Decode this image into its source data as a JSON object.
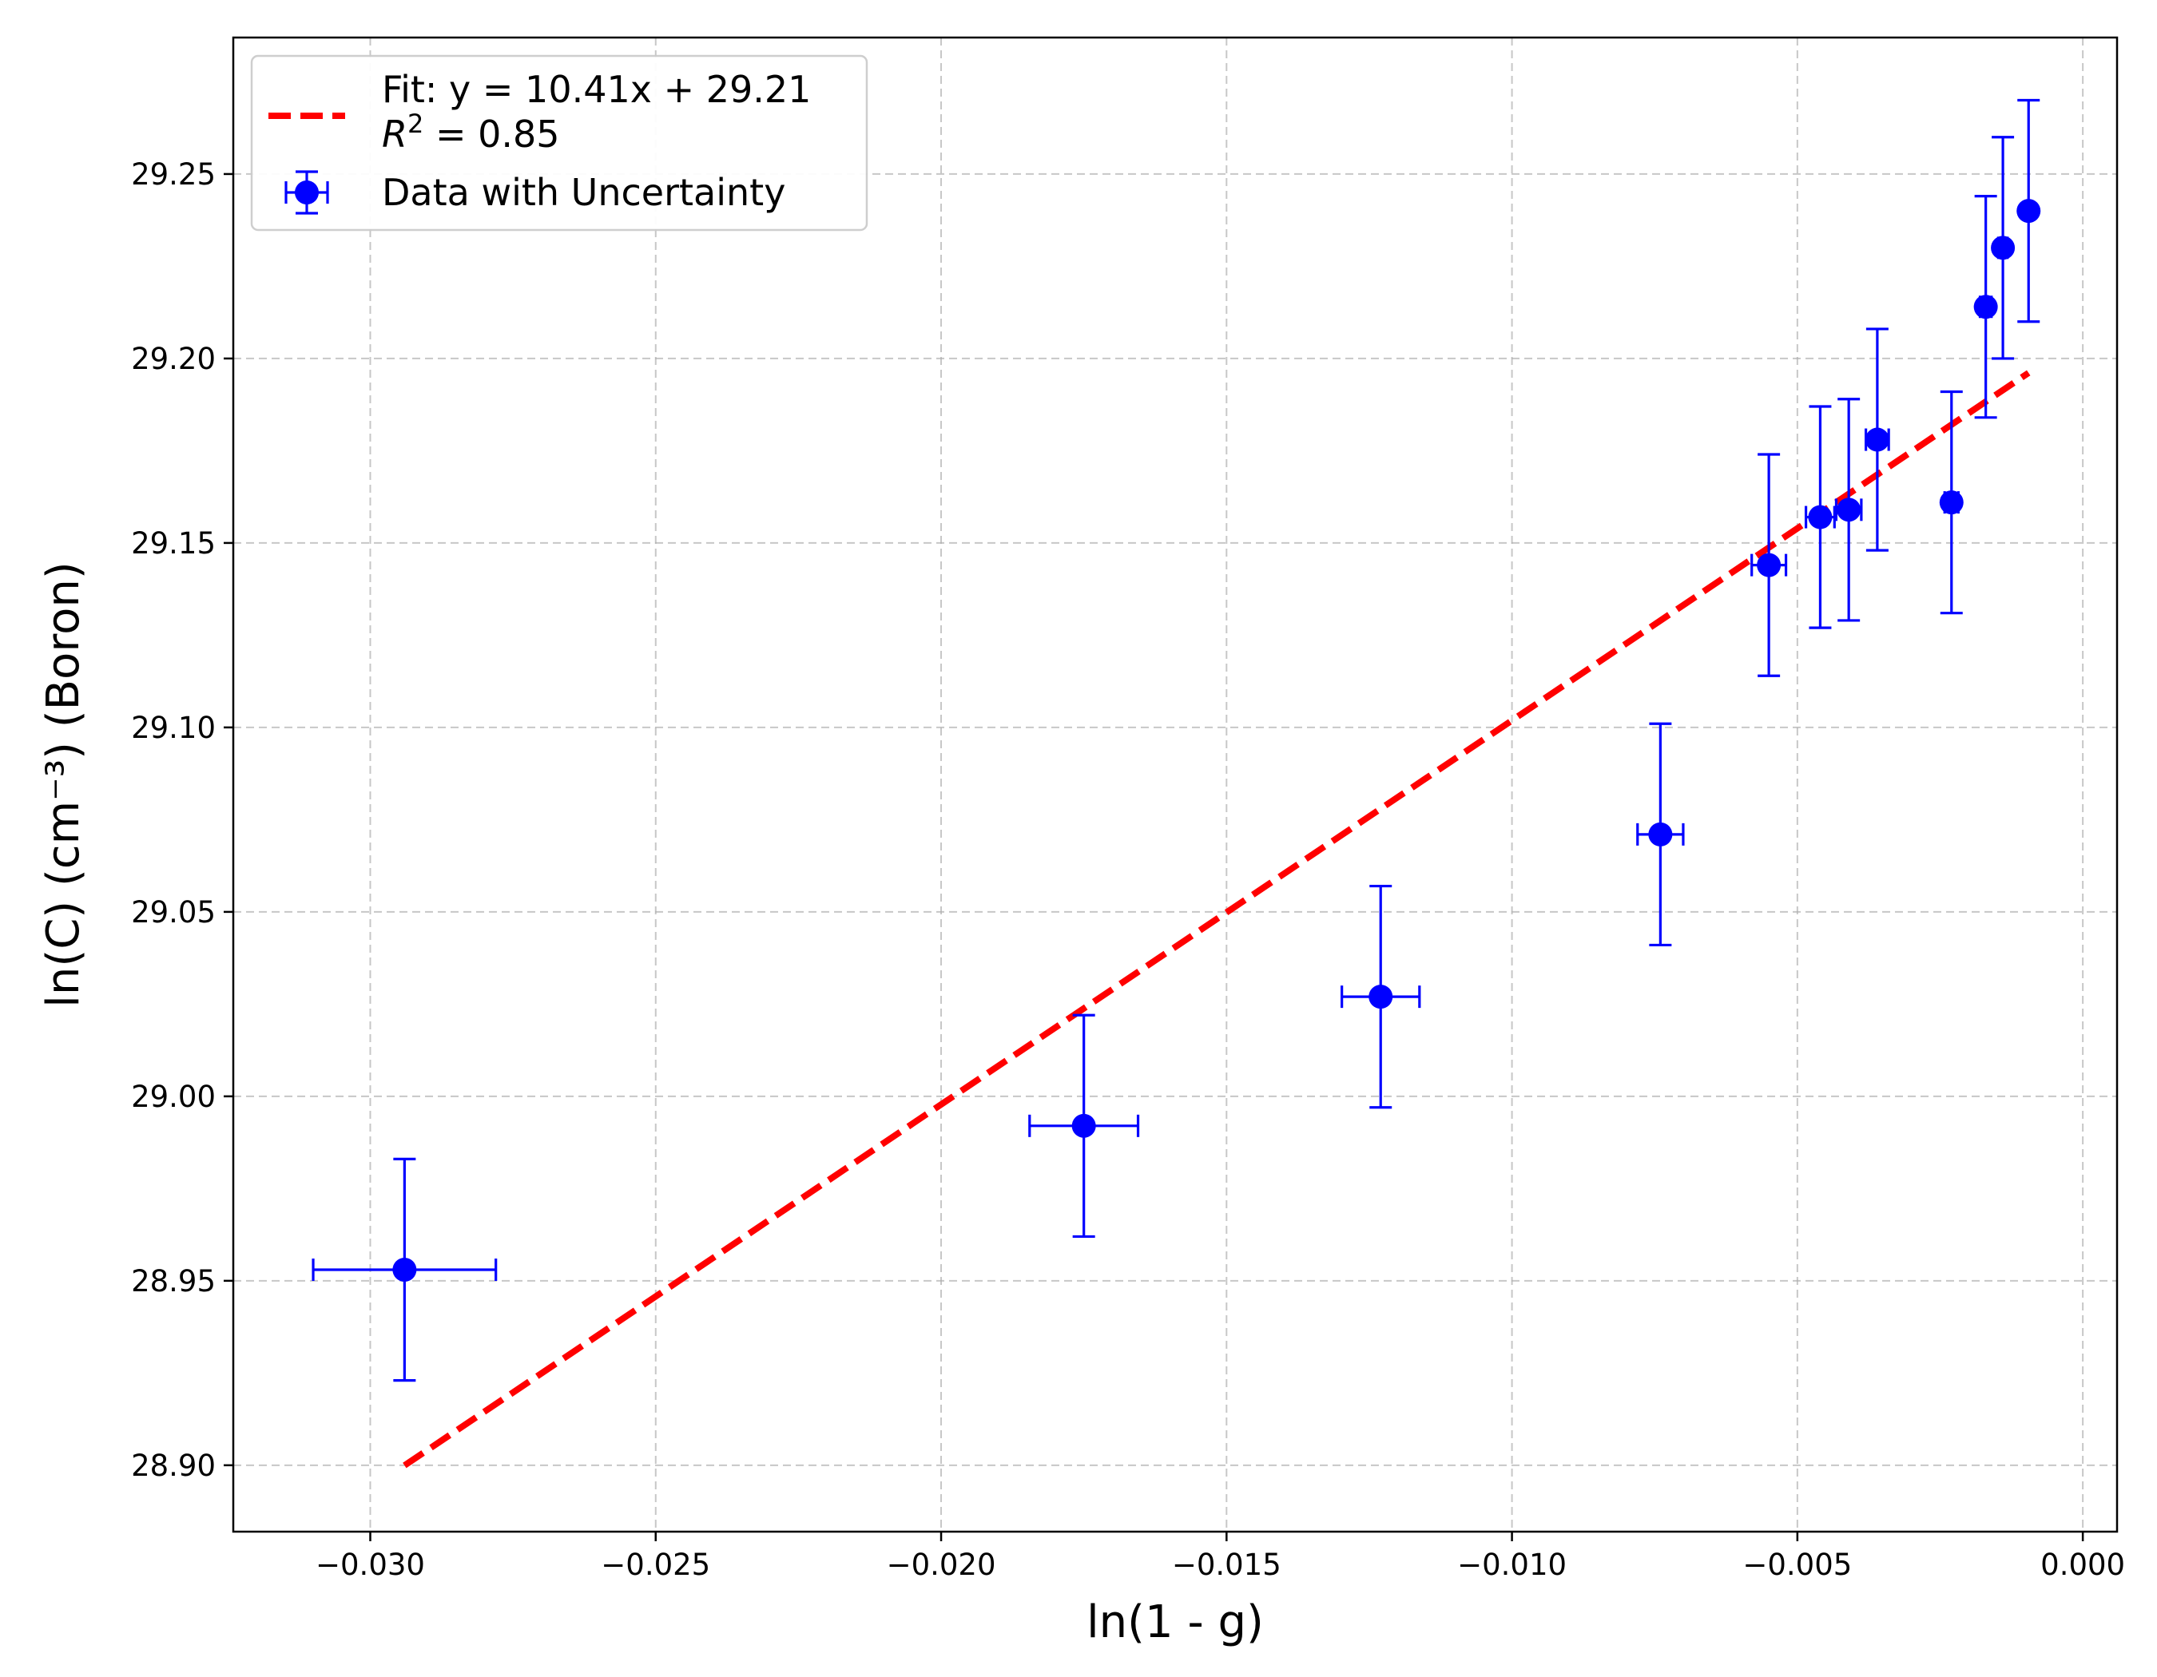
{
  "chart_data": {
    "type": "scatter",
    "xlabel": "ln(1 - g)",
    "ylabel": "ln(C) (cm⁻³) (Boron)",
    "xlim": [
      -0.0324,
      0.0006
    ],
    "ylim": [
      28.882,
      29.287
    ],
    "x_ticks": [
      "−0.030",
      "−0.025",
      "−0.020",
      "−0.015",
      "−0.010",
      "−0.005",
      "0.000"
    ],
    "x_tick_values": [
      -0.03,
      -0.025,
      -0.02,
      -0.015,
      -0.01,
      -0.005,
      0.0
    ],
    "y_ticks": [
      "28.90",
      "28.95",
      "29.00",
      "29.05",
      "29.10",
      "29.15",
      "29.20",
      "29.25"
    ],
    "y_tick_values": [
      28.9,
      28.95,
      29.0,
      29.05,
      29.1,
      29.15,
      29.2,
      29.25
    ],
    "grid": true,
    "legend_position": "top-left",
    "series": [
      {
        "name": "Data with Uncertainty",
        "kind": "errorbar",
        "color": "#0000ff",
        "points": [
          {
            "x": -0.0294,
            "y": 28.953,
            "xerr": 0.0016,
            "yerr": 0.03
          },
          {
            "x": -0.0175,
            "y": 28.992,
            "xerr": 0.00095,
            "yerr": 0.03
          },
          {
            "x": -0.0123,
            "y": 29.027,
            "xerr": 0.00068,
            "yerr": 0.03
          },
          {
            "x": -0.0074,
            "y": 29.071,
            "xerr": 0.0004,
            "yerr": 0.03
          },
          {
            "x": -0.0055,
            "y": 29.144,
            "xerr": 0.0003,
            "yerr": 0.03
          },
          {
            "x": -0.0046,
            "y": 29.157,
            "xerr": 0.00025,
            "yerr": 0.03
          },
          {
            "x": -0.0041,
            "y": 29.159,
            "xerr": 0.00022,
            "yerr": 0.03
          },
          {
            "x": -0.0036,
            "y": 29.178,
            "xerr": 0.0002,
            "yerr": 0.03
          },
          {
            "x": -0.0023,
            "y": 29.161,
            "xerr": 0.00012,
            "yerr": 0.03
          },
          {
            "x": -0.0017,
            "y": 29.214,
            "xerr": 0.0001,
            "yerr": 0.03
          },
          {
            "x": -0.0014,
            "y": 29.23,
            "xerr": 8e-05,
            "yerr": 0.03
          },
          {
            "x": -0.00095,
            "y": 29.24,
            "xerr": 5e-05,
            "yerr": 0.03
          }
        ]
      },
      {
        "name": "Fit: y = 10.41x + 29.21",
        "name_line2": "R",
        "name_line2_sup": "2",
        "name_line2_rest": " = 0.85",
        "kind": "fit-line",
        "color": "#ff0000",
        "slope": 10.41,
        "intercept": 29.206,
        "x_range": [
          -0.0294,
          -0.00095
        ]
      }
    ]
  }
}
